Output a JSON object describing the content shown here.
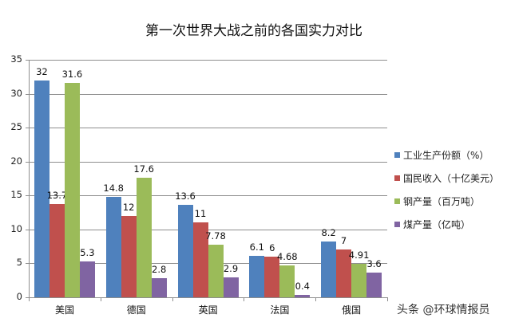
{
  "title": "第一次世界大战之前的各国实力对比",
  "watermark": "头条 @环球情报员",
  "chart_data": {
    "type": "bar",
    "title": "第一次世界大战之前的各国实力对比",
    "xlabel": "",
    "ylabel": "",
    "ylim": [
      0,
      35
    ],
    "yticks": [
      0,
      5,
      10,
      15,
      20,
      25,
      30,
      35
    ],
    "grid": true,
    "legend_position": "right",
    "categories": [
      "美国",
      "德国",
      "英国",
      "法国",
      "俄国"
    ],
    "series": [
      {
        "name": "工业生产份额（%）",
        "color": "#4f81bd",
        "values": [
          32,
          14.8,
          13.6,
          6.1,
          8.2
        ],
        "labels": [
          "32",
          "14.8",
          "13.6",
          "6.1",
          "8.2"
        ]
      },
      {
        "name": "国民收入（十亿美元）",
        "color": "#c0504d",
        "values": [
          13.7,
          12,
          11,
          6,
          7
        ],
        "labels": [
          "13.7",
          "12",
          "11",
          "6",
          "7"
        ]
      },
      {
        "name": "钢产量（百万吨）",
        "color": "#9bbb59",
        "values": [
          31.6,
          17.6,
          7.78,
          4.68,
          4.91
        ],
        "labels": [
          "31.6",
          "17.6",
          "7.78",
          "4.68",
          "4.91"
        ]
      },
      {
        "name": "煤产量（亿吨）",
        "color": "#8064a2",
        "values": [
          5.3,
          2.8,
          2.9,
          0.4,
          3.6
        ],
        "labels": [
          "5.3",
          "2.8",
          "2.9",
          "0.4",
          "3.6"
        ]
      }
    ]
  }
}
